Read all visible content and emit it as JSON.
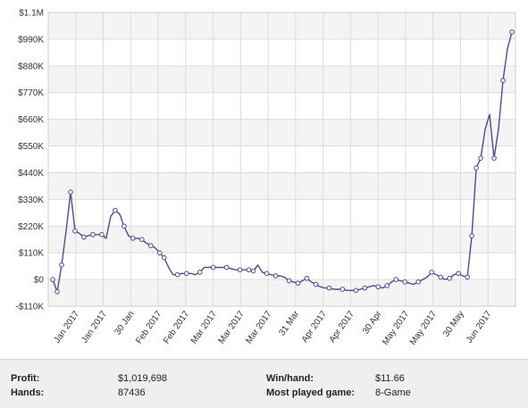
{
  "chart_data": {
    "type": "line",
    "title": "",
    "xlabel": "",
    "ylabel": "",
    "ylim": [
      -110000,
      1100000
    ],
    "yticks": [
      -110000,
      0,
      110000,
      220000,
      330000,
      440000,
      550000,
      660000,
      770000,
      880000,
      990000,
      1100000
    ],
    "ytick_labels": [
      "-$110K",
      "$0",
      "$110K",
      "$220K",
      "$330K",
      "$440K",
      "$550K",
      "$660K",
      "$770K",
      "$880K",
      "$990K",
      "$1.1M"
    ],
    "xtick_labels": [
      "Jan 2017",
      "Jan 2017",
      "30 Jan",
      "Feb 2017",
      "Feb 2017",
      "Mar 2017",
      "Mar 2017",
      "Mar 2017",
      "31 Mar",
      "Apr 2017",
      "Apr 2017",
      "30 Apr",
      "May 2017",
      "May 2017",
      "30 May",
      "Jun 2017"
    ],
    "grid": true,
    "line_color": "#4d4d8a",
    "series": [
      {
        "values": [
          0,
          -50000,
          60000,
          200000,
          360000,
          200000,
          190000,
          175000,
          180000,
          185000,
          185000,
          185000,
          170000,
          260000,
          285000,
          270000,
          220000,
          180000,
          170000,
          170000,
          165000,
          150000,
          140000,
          130000,
          110000,
          90000,
          50000,
          20000,
          20000,
          25000,
          25000,
          25000,
          20000,
          30000,
          50000,
          50000,
          50000,
          50000,
          50000,
          50000,
          45000,
          40000,
          40000,
          40000,
          40000,
          35000,
          60000,
          30000,
          25000,
          20000,
          15000,
          15000,
          10000,
          -5000,
          -10000,
          -15000,
          -5000,
          5000,
          -10000,
          -20000,
          -30000,
          -35000,
          -35000,
          -40000,
          -40000,
          -40000,
          -45000,
          -45000,
          -45000,
          -40000,
          -35000,
          -30000,
          -25000,
          -30000,
          -35000,
          -25000,
          -10000,
          0,
          -5000,
          -10000,
          -15000,
          -20000,
          -10000,
          0,
          10000,
          30000,
          20000,
          10000,
          0,
          5000,
          20000,
          25000,
          15000,
          10000,
          180000,
          460000,
          500000,
          620000,
          680000,
          500000,
          620000,
          820000,
          950000,
          1019698
        ],
        "markers": [
          0,
          1,
          2,
          4,
          5,
          7,
          9,
          11,
          14,
          16,
          18,
          20,
          22,
          24,
          25,
          28,
          30,
          33,
          36,
          39,
          42,
          44,
          45,
          48,
          50,
          53,
          55,
          57,
          59,
          62,
          65,
          68,
          70,
          73,
          75,
          77,
          79,
          82,
          85,
          87,
          89,
          91,
          93,
          94,
          95,
          96,
          99,
          101,
          103
        ]
      }
    ]
  },
  "stats": {
    "profit_label": "Profit:",
    "profit_value": "$1,019,698",
    "hands_label": "Hands:",
    "hands_value": "87436",
    "winhand_label": "Win/hand:",
    "winhand_value": "$11.66",
    "game_label": "Most played game:",
    "game_value": "8-Game"
  }
}
